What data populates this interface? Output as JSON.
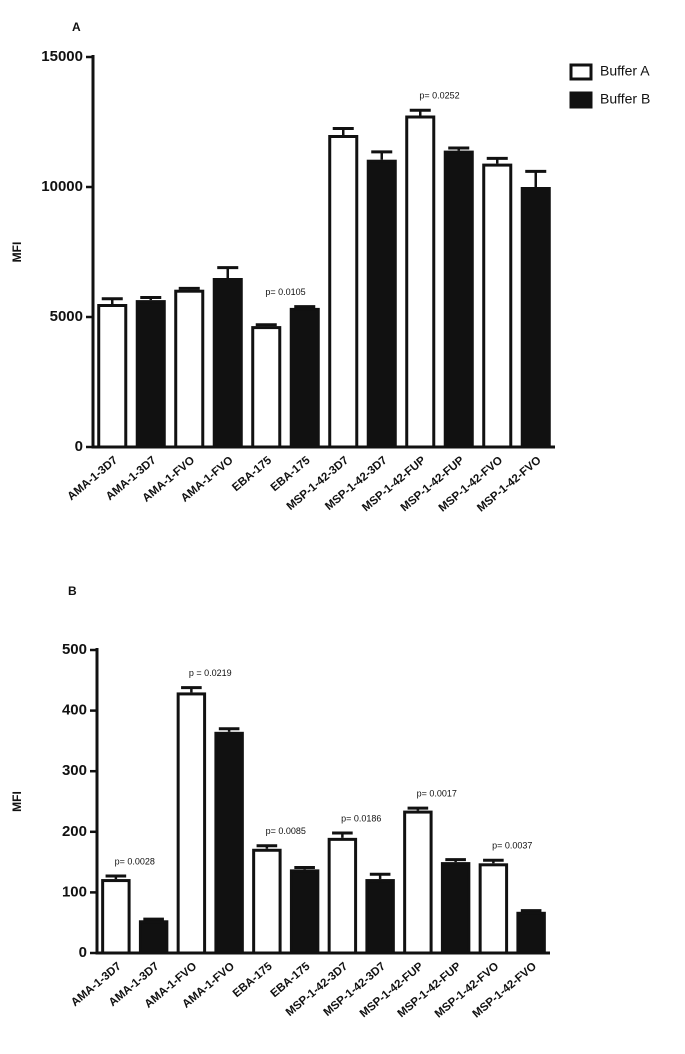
{
  "chart_data": [
    {
      "type": "bar",
      "title": "A",
      "y_label": "MFI",
      "categories": [
        "AMA-1-3D7",
        "AMA-1-3D7",
        "AMA-1-FVO",
        "AMA-1-FVO",
        "EBA-175",
        "EBA-175",
        "MSP-1-42-3D7",
        "MSP-1-42-3D7",
        "MSP-1-42-FUP",
        "MSP-1-42-FUP",
        "MSP-1-42-FVO",
        "MSP-1-42-FVO"
      ],
      "series": [
        {
          "name": "Buffer A",
          "color": "#ffffff",
          "values": [
            5500,
            null,
            6050,
            null,
            4650,
            null,
            12000,
            null,
            12750,
            null,
            10900,
            null
          ],
          "errors": [
            200,
            null,
            50,
            null,
            50,
            null,
            250,
            null,
            200,
            null,
            200,
            null
          ]
        },
        {
          "name": "Buffer B",
          "color": "#111111",
          "values": [
            null,
            5650,
            null,
            6500,
            null,
            5350,
            null,
            11050,
            null,
            11400,
            null,
            10000
          ],
          "errors": [
            null,
            100,
            null,
            400,
            null,
            50,
            null,
            300,
            null,
            100,
            null,
            600
          ]
        }
      ],
      "p_labels": [
        null,
        null,
        null,
        null,
        "p= 0.0105",
        null,
        null,
        null,
        "p= 0.0252",
        null,
        null,
        null
      ],
      "ylim": [
        0,
        15000
      ],
      "yticks": [
        0,
        5000,
        10000,
        15000
      ],
      "legend": "top-right"
    },
    {
      "type": "bar",
      "title": "B",
      "y_label": "MFI",
      "categories": [
        "AMA-1-3D7",
        "AMA-1-3D7",
        "AMA-1-FVO",
        "AMA-1-FVO",
        "EBA-175",
        "EBA-175",
        "MSP-1-42-3D7",
        "MSP-1-42-3D7",
        "MSP-1-42-FUP",
        "MSP-1-42-FUP",
        "MSP-1-42-FVO",
        "MSP-1-42-FVO"
      ],
      "series": [
        {
          "color": "#ffffff",
          "values": [
            122,
            null,
            430,
            null,
            172,
            null,
            190,
            null,
            235,
            null,
            148,
            null
          ],
          "errors": [
            5,
            null,
            8,
            null,
            5,
            null,
            8,
            null,
            4,
            null,
            5,
            null
          ]
        },
        {
          "color": "#111111",
          "values": [
            null,
            54,
            null,
            365,
            null,
            138,
            null,
            122,
            null,
            150,
            null,
            68
          ],
          "errors": [
            null,
            2,
            null,
            5,
            null,
            3,
            null,
            8,
            null,
            4,
            null,
            2
          ]
        }
      ],
      "p_labels": [
        "p= 0.0028",
        null,
        "p = 0.0219",
        null,
        "p= 0.0085",
        null,
        "p= 0.0186",
        null,
        "p= 0.0017",
        null,
        "p= 0.0037",
        null
      ],
      "ylim": [
        0,
        500
      ],
      "yticks": [
        0,
        100,
        200,
        300,
        400,
        500
      ]
    }
  ]
}
